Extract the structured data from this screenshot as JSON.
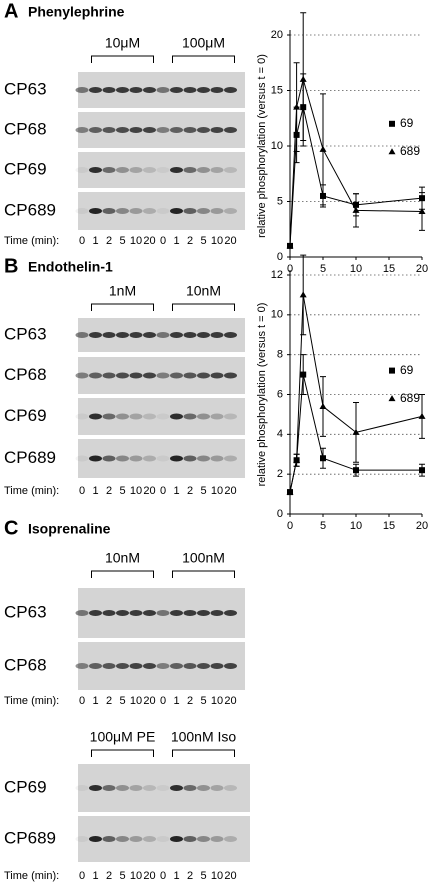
{
  "panels": [
    {
      "letter": "A",
      "title": "Phenylephrine",
      "blocks": [
        {
          "concentrations": [
            "10μM",
            "100μM"
          ],
          "rows": [
            "CP63",
            "CP68",
            "CP69",
            "CP689"
          ],
          "time_label": "Time (min):",
          "times": [
            "0",
            "1",
            "2",
            "5",
            "10",
            "20",
            "0",
            "1",
            "2",
            "5",
            "10",
            "20"
          ]
        }
      ]
    },
    {
      "letter": "B",
      "title": "Endothelin-1",
      "blocks": [
        {
          "concentrations": [
            "1nM",
            "10nM"
          ],
          "rows": [
            "CP63",
            "CP68",
            "CP69",
            "CP689"
          ],
          "time_label": "Time (min):",
          "times": [
            "0",
            "1",
            "2",
            "5",
            "10",
            "20",
            "0",
            "1",
            "2",
            "5",
            "10",
            "20"
          ]
        }
      ]
    },
    {
      "letter": "C",
      "title": "Isoprenaline",
      "blocks": [
        {
          "concentrations": [
            "10nM",
            "100nM"
          ],
          "rows": [
            "CP63",
            "CP68"
          ],
          "time_label": "Time (min):",
          "times": [
            "0",
            "1",
            "2",
            "5",
            "10",
            "20",
            "0",
            "1",
            "2",
            "5",
            "10",
            "20"
          ]
        },
        {
          "concentrations": [
            "100μM PE",
            "100nM Iso"
          ],
          "rows": [
            "CP69",
            "CP689"
          ],
          "time_label": "Time (min):",
          "times": [
            "0",
            "1",
            "2",
            "5",
            "10",
            "20",
            "0",
            "1",
            "2",
            "5",
            "10",
            "20"
          ]
        }
      ]
    }
  ],
  "chart_data": [
    {
      "type": "line",
      "y_label": "relative phosphorylation (versus t = 0)",
      "x": [
        0,
        1,
        2,
        5,
        10,
        20
      ],
      "xlim": [
        0,
        20
      ],
      "xticks": [
        0,
        5,
        10,
        15,
        20
      ],
      "ylim": [
        0,
        20
      ],
      "yticks": [
        0,
        5,
        10,
        15,
        20
      ],
      "grid": true,
      "legend": "right",
      "series": [
        {
          "name": "69",
          "color": "#000000",
          "marker": "square",
          "values": [
            1,
            11,
            13.5,
            5.5,
            4.7,
            5.3
          ],
          "errors": [
            0,
            2.5,
            3,
            1,
            1,
            1
          ]
        },
        {
          "name": "689",
          "color": "#000000",
          "marker": "triangle",
          "values": [
            1,
            13.5,
            16,
            9.7,
            4.2,
            4.1
          ],
          "errors": [
            0,
            4,
            6,
            5,
            1.5,
            1.7
          ]
        }
      ]
    },
    {
      "type": "line",
      "y_label": "relative phosphorylation (versus t = 0)",
      "x": [
        0,
        1,
        2,
        5,
        10,
        20
      ],
      "xlim": [
        0,
        20
      ],
      "xticks": [
        0,
        5,
        10,
        15,
        20
      ],
      "ylim": [
        0,
        12
      ],
      "yticks": [
        0,
        2,
        4,
        6,
        8,
        10,
        12
      ],
      "grid": true,
      "legend": "right",
      "series": [
        {
          "name": "69",
          "color": "#000000",
          "marker": "square",
          "values": [
            1.1,
            2.7,
            7,
            2.8,
            2.2,
            2.2
          ],
          "errors": [
            0,
            0.3,
            1,
            0.5,
            0.3,
            0.3
          ]
        },
        {
          "name": "689",
          "color": "#000000",
          "marker": "triangle",
          "values": [
            1.1,
            2.7,
            11,
            5.4,
            4.1,
            4.9
          ],
          "errors": [
            0,
            0.3,
            2,
            1.5,
            1.5,
            1.1
          ]
        }
      ]
    }
  ]
}
